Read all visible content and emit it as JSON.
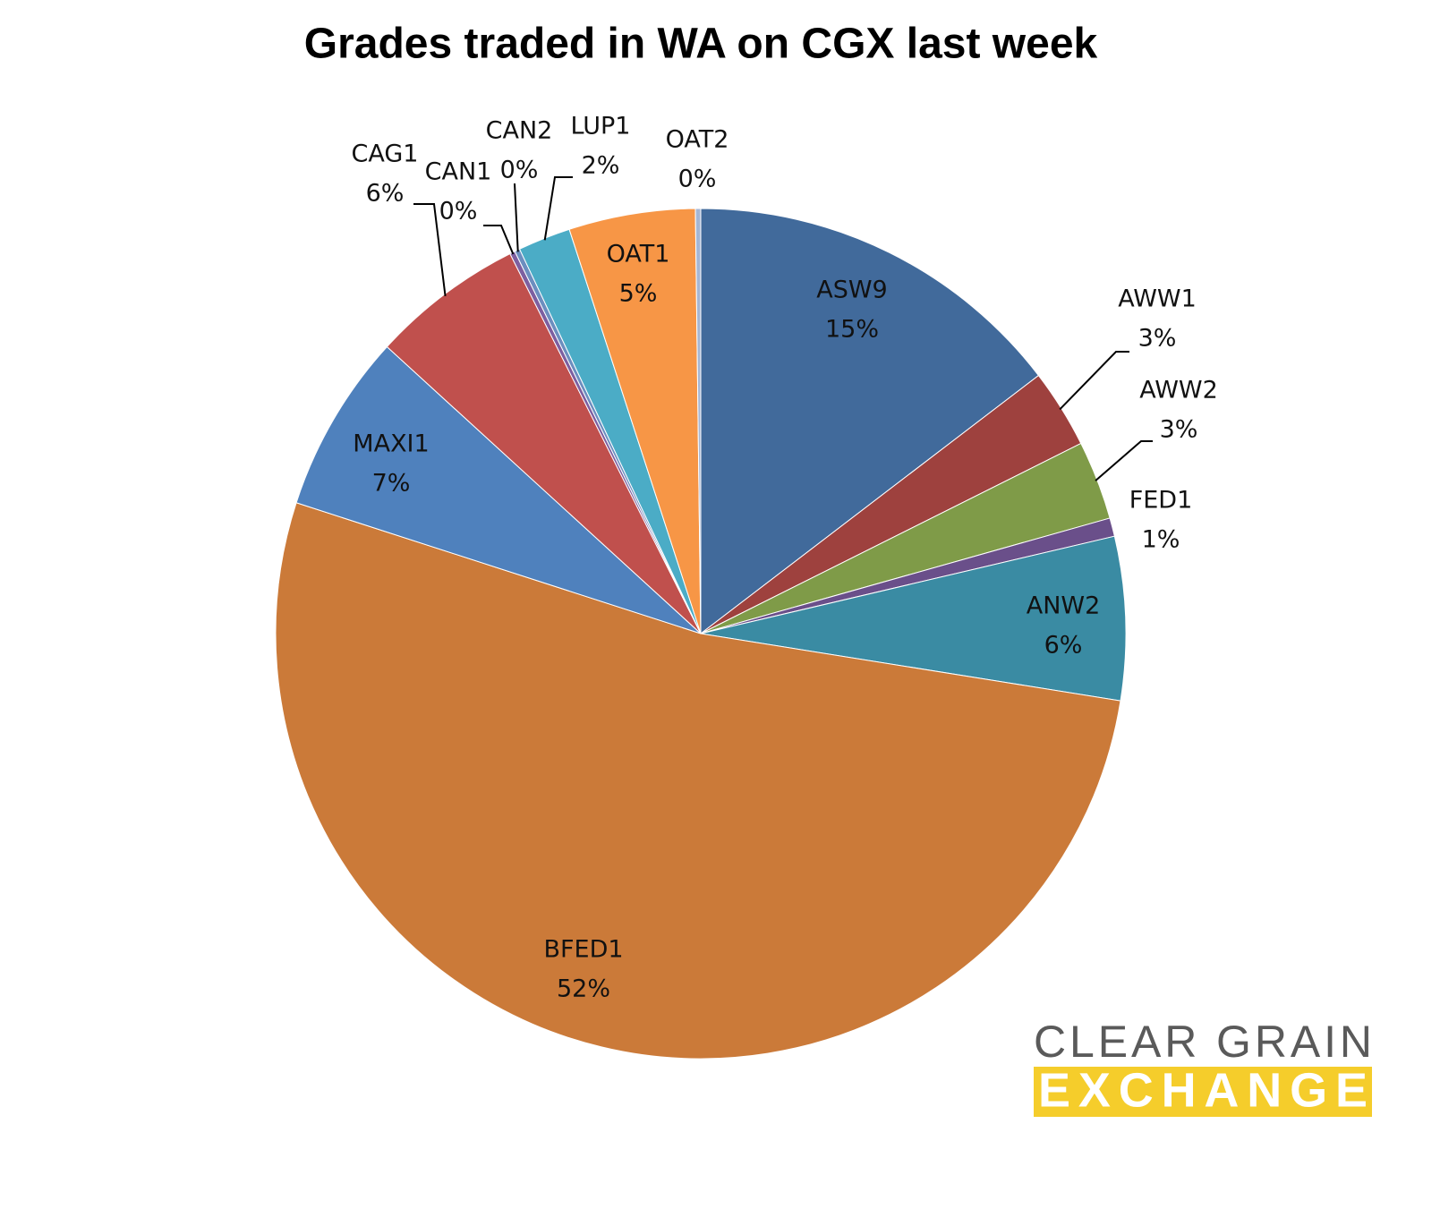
{
  "chart_data": {
    "type": "pie",
    "title": "Grades traded in WA on CGX last week",
    "categories": [
      "ASW9",
      "AWW1",
      "AWW2",
      "FED1",
      "ANW2",
      "BFED1",
      "MAXI1",
      "CAG1",
      "CAN1",
      "CAN2",
      "LUP1",
      "OAT1",
      "OAT2"
    ],
    "values": [
      14.6,
      3.0,
      3.0,
      0.7,
      6.2,
      52.4,
      6.8,
      5.8,
      0.2,
      0.2,
      2.0,
      4.8,
      0.2
    ],
    "value_labels": [
      "15%",
      "3%",
      "3%",
      "1%",
      "6%",
      "52%",
      "7%",
      "6%",
      "0%",
      "0%",
      "2%",
      "5%",
      "0%"
    ],
    "colors": [
      "#416a9b",
      "#9e413e",
      "#7f9b48",
      "#6a4f8a",
      "#3a8ba3",
      "#cb7a39",
      "#4f81bd",
      "#c0504d",
      "#7d5fa0",
      "#6c8ebf",
      "#4bacc6",
      "#f79646",
      "#a5b6d4"
    ]
  },
  "logo": {
    "line1": "CLEAR GRAIN",
    "line2": "EXCHANGE"
  }
}
